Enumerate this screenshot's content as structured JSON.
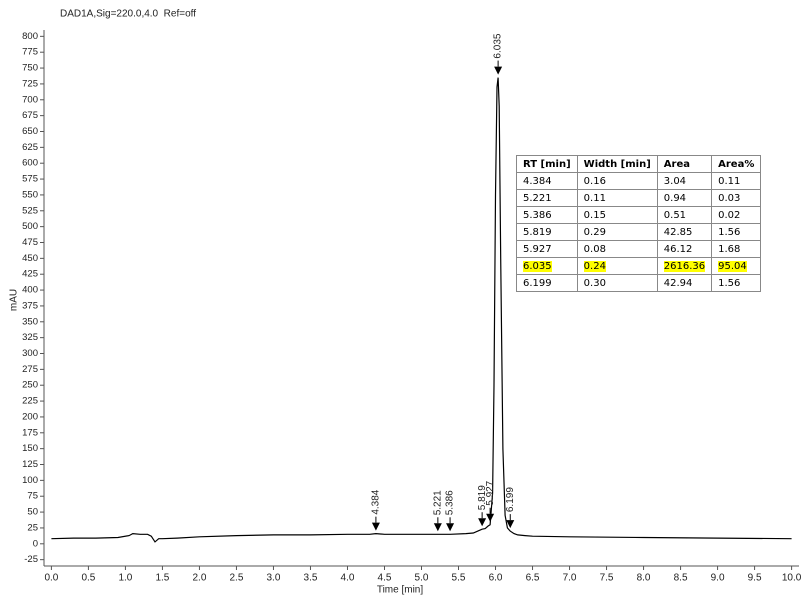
{
  "chart_data": {
    "type": "line",
    "title": "DAD1A,Sig=220.0,4.0  Ref=off",
    "x_label": "Time [min]",
    "y_label": "mAU",
    "color": "#000000",
    "x": [
      0,
      0.3,
      0.6,
      0.9,
      1.05,
      1.1,
      1.2,
      1.3,
      1.35,
      1.4,
      1.45,
      1.5,
      1.7,
      2,
      2.5,
      3,
      3.5,
      4,
      4.3,
      4.384,
      4.5,
      5,
      5.221,
      5.386,
      5.6,
      5.7,
      5.8,
      5.819,
      5.86,
      5.9,
      5.927,
      5.96,
      5.98,
      6.0,
      6.02,
      6.035,
      6.05,
      6.07,
      6.1,
      6.13,
      6.16,
      6.199,
      6.25,
      6.3,
      6.4,
      6.5,
      7,
      8,
      9,
      10
    ],
    "values": [
      8,
      9,
      9,
      10,
      13,
      16,
      15,
      15,
      12,
      3,
      8,
      8,
      9,
      11,
      13,
      14,
      14,
      15,
      15,
      16,
      15,
      15,
      15,
      15,
      16,
      17,
      22,
      23,
      24,
      28,
      30,
      80,
      250,
      550,
      720,
      735,
      690,
      450,
      150,
      45,
      25,
      20,
      16,
      14,
      13,
      12,
      11,
      10,
      9,
      8
    ],
    "xlim": [
      -0.1,
      10.1
    ],
    "ylim": [
      -35,
      810
    ],
    "xticks": [
      {
        "value": 0,
        "label": "0.0"
      },
      {
        "value": 0.5,
        "label": "0.5"
      },
      {
        "value": 1,
        "label": "1.0"
      },
      {
        "value": 1.5,
        "label": "1.5"
      },
      {
        "value": 2,
        "label": "2.0"
      },
      {
        "value": 2.5,
        "label": "2.5"
      },
      {
        "value": 3,
        "label": "3.0"
      },
      {
        "value": 3.5,
        "label": "3.5"
      },
      {
        "value": 4,
        "label": "4.0"
      },
      {
        "value": 4.5,
        "label": "4.5"
      },
      {
        "value": 5,
        "label": "5.0"
      },
      {
        "value": 5.5,
        "label": "5.5"
      },
      {
        "value": 6,
        "label": "6.0"
      },
      {
        "value": 6.5,
        "label": "6.5"
      },
      {
        "value": 7,
        "label": "7.0"
      },
      {
        "value": 7.5,
        "label": "7.5"
      },
      {
        "value": 8,
        "label": "8.0"
      },
      {
        "value": 8.5,
        "label": "8.5"
      },
      {
        "value": 9,
        "label": "9.0"
      },
      {
        "value": 9.5,
        "label": "9.5"
      },
      {
        "value": 10,
        "label": "10.0"
      }
    ],
    "yticks": [
      -25,
      0,
      25,
      50,
      75,
      100,
      125,
      150,
      175,
      200,
      225,
      250,
      275,
      300,
      325,
      350,
      375,
      400,
      425,
      450,
      475,
      500,
      525,
      550,
      575,
      600,
      625,
      650,
      675,
      700,
      725,
      750,
      775,
      800
    ],
    "peaks": [
      4.384,
      5.221,
      5.386,
      5.819,
      5.927,
      6.035,
      6.199
    ],
    "table": {
      "columns": [
        "RT [min]",
        "Width [min]",
        "Area",
        "Area%"
      ],
      "rows": [
        [
          "4.384",
          "0.16",
          "3.04",
          "0.11"
        ],
        [
          "5.221",
          "0.11",
          "0.94",
          "0.03"
        ],
        [
          "5.386",
          "0.15",
          "0.51",
          "0.02"
        ],
        [
          "5.819",
          "0.29",
          "42.85",
          "1.56"
        ],
        [
          "5.927",
          "0.08",
          "46.12",
          "1.68"
        ],
        [
          "6.035",
          "0.24",
          "2616.36",
          "95.04"
        ],
        [
          "6.199",
          "0.30",
          "42.94",
          "1.56"
        ]
      ],
      "highlight_row": 5,
      "highlight_color": "#ffff00"
    }
  }
}
